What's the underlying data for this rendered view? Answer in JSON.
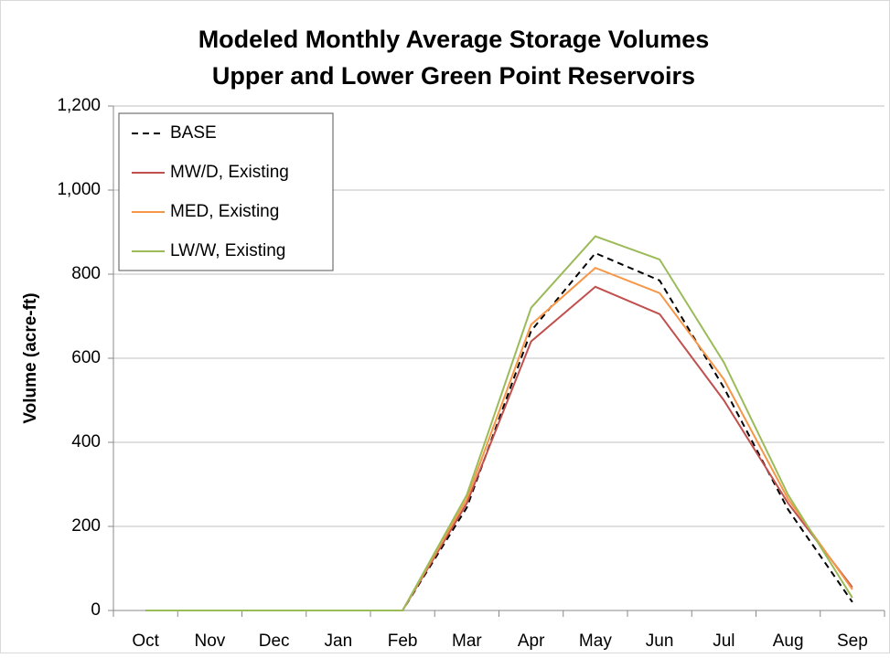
{
  "chart_data": {
    "type": "line",
    "title": "Modeled Monthly Average Storage Volumes",
    "subtitle": "Upper and Lower Green Point Reservoirs",
    "y_label": "Volume (acre-ft)",
    "categories": [
      "Oct",
      "Nov",
      "Dec",
      "Jan",
      "Feb",
      "Mar",
      "Apr",
      "May",
      "Jun",
      "Jul",
      "Aug",
      "Sep"
    ],
    "series": [
      {
        "name": "BASE",
        "color": "#000000",
        "dash": true,
        "values": [
          0,
          0,
          0,
          0,
          0,
          245,
          665,
          850,
          785,
          530,
          240,
          20
        ]
      },
      {
        "name": "MW/D, Existing",
        "color": "#c0504d",
        "values": [
          0,
          0,
          0,
          0,
          0,
          255,
          640,
          770,
          705,
          500,
          255,
          55
        ]
      },
      {
        "name": "MED, Existing",
        "color": "#f79646",
        "values": [
          0,
          0,
          0,
          0,
          0,
          265,
          680,
          815,
          755,
          550,
          265,
          50
        ]
      },
      {
        "name": "LW/W, Existing",
        "color": "#9bbb59",
        "values": [
          0,
          0,
          0,
          0,
          0,
          275,
          720,
          890,
          835,
          590,
          275,
          30
        ]
      }
    ],
    "ylim": [
      0,
      1200
    ],
    "yticks": [
      0,
      200,
      400,
      600,
      800,
      {
        "value": 1000,
        "label": "1,000"
      },
      {
        "value": 1200,
        "label": "1,200"
      }
    ],
    "grid": true,
    "legend": "top-left"
  }
}
